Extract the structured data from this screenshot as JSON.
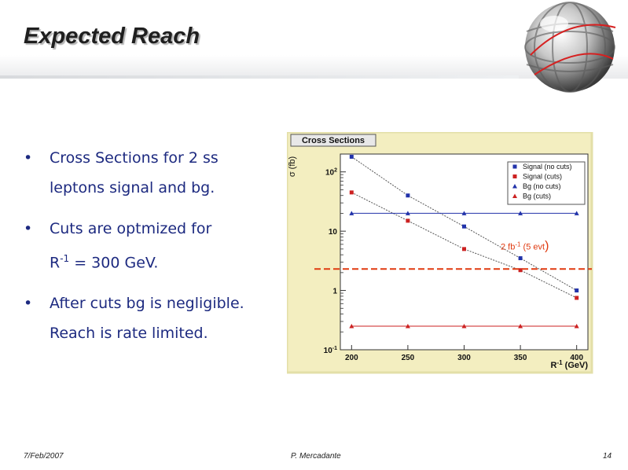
{
  "slide": {
    "title": "Expected Reach",
    "bullets": [
      {
        "line1": "Cross Sections for 2 ss",
        "line2": "leptons signal and bg."
      },
      {
        "line1": "Cuts are optmized for",
        "line2_pre": "R",
        "line2_sup": "-1",
        "line2_post": " = 300 GeV."
      },
      {
        "line1": "After cuts bg is negligible.",
        "line2": "Reach is rate limited."
      }
    ],
    "bullet_symbol": "•",
    "footer": {
      "date": "7/Feb/2007",
      "author": "P. Mercadante",
      "page": "14"
    }
  },
  "chart_data": {
    "type": "scatter",
    "panel_title": "Cross Sections",
    "xlabel_base": "R",
    "xlabel_sup": "-1",
    "xlabel_unit": " (GeV)",
    "ylabel": "σ (fb)",
    "ylog": true,
    "xlim": [
      190,
      410
    ],
    "ylim": [
      0.1,
      200
    ],
    "x_ticks": [
      "200",
      "250",
      "300",
      "350",
      "400"
    ],
    "y_ticks": [
      {
        "base": "10",
        "sup": "-1",
        "value": 0.1
      },
      {
        "base": "1",
        "sup": "",
        "value": 1
      },
      {
        "base": "10",
        "sup": "",
        "value": 10
      },
      {
        "base": "10",
        "sup": "2",
        "value": 100
      }
    ],
    "grid": false,
    "legend_position": "top-right",
    "x": [
      200,
      250,
      300,
      350,
      400
    ],
    "series": [
      {
        "name": "Signal (no cuts)",
        "values": [
          180,
          40,
          12,
          3.5,
          1.0
        ],
        "color": "#2233aa",
        "marker": "square"
      },
      {
        "name": "Signal (cuts)",
        "values": [
          45,
          15,
          5,
          2.2,
          0.75
        ],
        "color": "#cc2222",
        "marker": "square"
      },
      {
        "name": "Bg (no cuts)",
        "values": [
          20,
          20,
          20,
          20,
          20
        ],
        "color": "#2233aa",
        "marker": "triangle"
      },
      {
        "name": "Bg (cuts)",
        "values": [
          0.25,
          0.25,
          0.25,
          0.25,
          0.25
        ],
        "color": "#cc2222",
        "marker": "triangle"
      }
    ],
    "reference_line": {
      "value": 2.3,
      "label_base": "2 fb",
      "label_sup": "-1",
      "label_post": " (5 evt",
      "label_close": ")",
      "color": "#e03a10"
    }
  }
}
